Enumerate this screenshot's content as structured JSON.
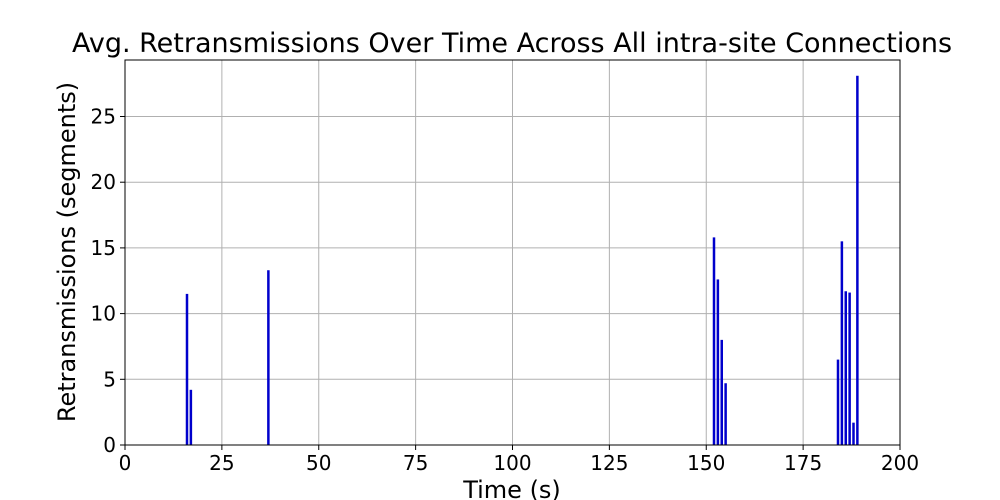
{
  "chart_data": {
    "type": "bar",
    "title": "Avg. Retransmissions Over Time Across All intra-site Connections",
    "xlabel": "Time (s)",
    "ylabel": "Retransmissions (segments)",
    "xlim": [
      0,
      200
    ],
    "ylim": [
      0,
      29.3
    ],
    "xticks": [
      "0",
      "25",
      "50",
      "75",
      "100",
      "125",
      "150",
      "175",
      "200"
    ],
    "yticks": [
      "0",
      "5",
      "10",
      "15",
      "20",
      "25"
    ],
    "grid": true,
    "bar_color": "#0000cc",
    "x": [
      16,
      17,
      37,
      152,
      153,
      154,
      155,
      184,
      185,
      186,
      187,
      188,
      189
    ],
    "values": [
      11.5,
      4.2,
      13.3,
      15.8,
      12.6,
      8.0,
      4.7,
      6.5,
      15.5,
      11.7,
      11.6,
      1.7,
      28.1
    ]
  }
}
